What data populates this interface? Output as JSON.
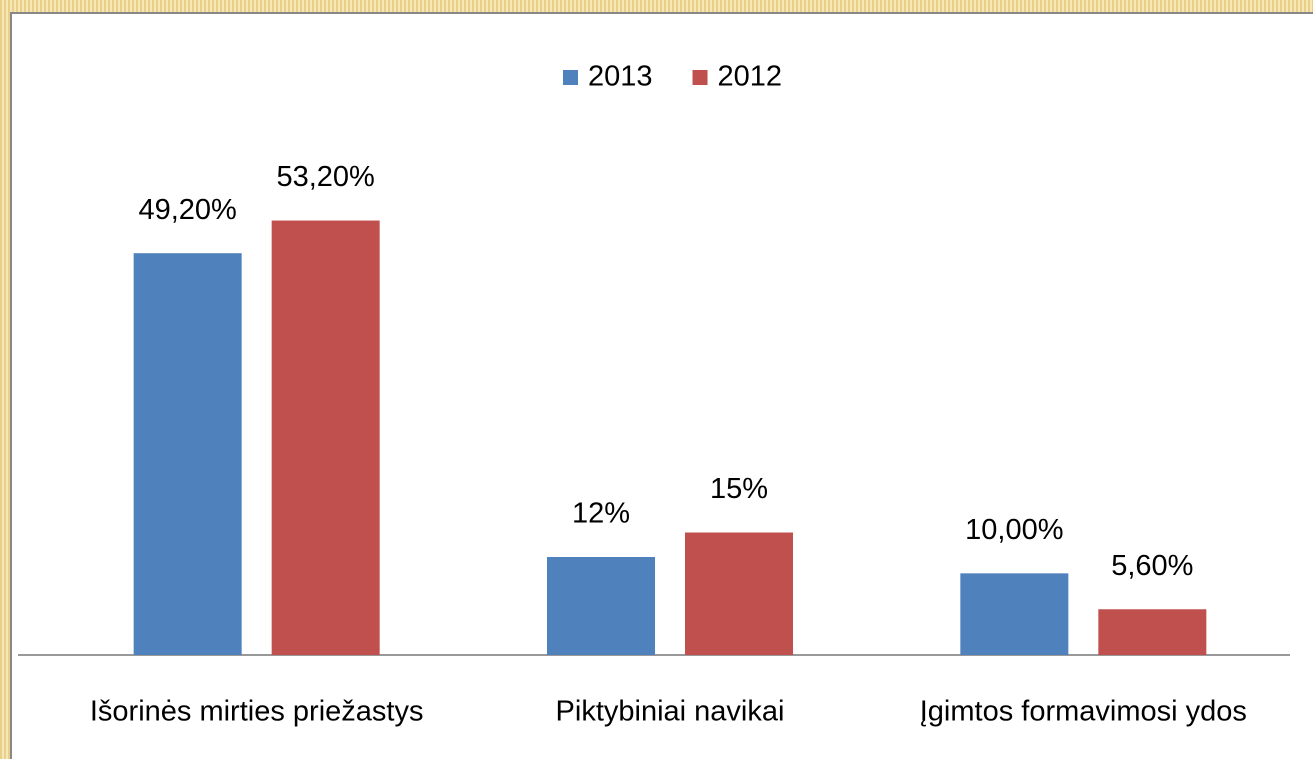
{
  "chart_data": {
    "type": "bar",
    "categories": [
      "Išorinės mirties priežastys",
      "Piktybiniai navikai",
      "Įgimtos formavimosi ydos"
    ],
    "series": [
      {
        "name": "2013",
        "color": "#4f81bd",
        "values": [
          49.2,
          12,
          10
        ],
        "value_labels": [
          "49,20%",
          "12%",
          "10,00%"
        ]
      },
      {
        "name": "2012",
        "color": "#c0504d",
        "values": [
          53.2,
          15,
          5.6
        ],
        "value_labels": [
          "53,20%",
          "15%",
          "5,60%"
        ]
      }
    ],
    "ylim": [
      0,
      60
    ],
    "legend": "top"
  }
}
